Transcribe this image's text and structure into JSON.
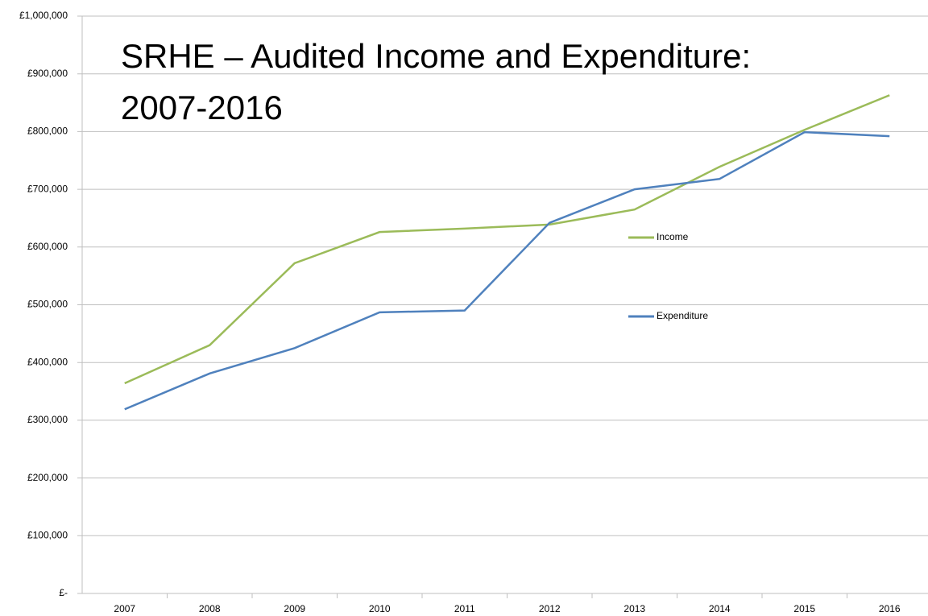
{
  "chart_data": {
    "type": "line",
    "title": "SRHE – Audited Income and Expenditure: 2007-2016",
    "categories": [
      "2007",
      "2008",
      "2009",
      "2010",
      "2011",
      "2012",
      "2013",
      "2014",
      "2015",
      "2016"
    ],
    "series": [
      {
        "name": "Income",
        "color": "#9bbb59",
        "values": [
          364000,
          430000,
          572000,
          626000,
          632000,
          639000,
          665000,
          739000,
          803000,
          863000
        ]
      },
      {
        "name": "Expenditure",
        "color": "#4f81bd",
        "values": [
          319000,
          381000,
          425000,
          487000,
          490000,
          642000,
          700000,
          718000,
          799000,
          792000
        ]
      }
    ],
    "ylim": [
      0,
      1000000
    ],
    "yticks": [
      {
        "value": 0,
        "label": "£-"
      },
      {
        "value": 100000,
        "label": "£100,000"
      },
      {
        "value": 200000,
        "label": "£200,000"
      },
      {
        "value": 300000,
        "label": "£300,000"
      },
      {
        "value": 400000,
        "label": "£400,000"
      },
      {
        "value": 500000,
        "label": "£500,000"
      },
      {
        "value": 600000,
        "label": "£600,000"
      },
      {
        "value": 700000,
        "label": "£700,000"
      },
      {
        "value": 800000,
        "label": "£800,000"
      },
      {
        "value": 900000,
        "label": "£900,000"
      },
      {
        "value": 1000000,
        "label": "£1,000,000"
      }
    ],
    "grid": true,
    "legend": "right"
  }
}
